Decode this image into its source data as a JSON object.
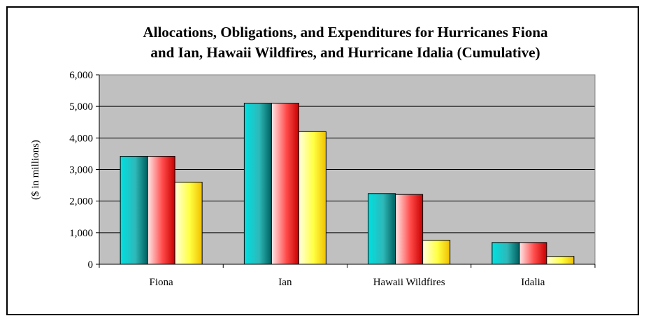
{
  "chart_data": {
    "type": "bar",
    "title_lines": [
      "Allocations, Obligations, and Expenditures for Hurricanes Fiona",
      "and Ian, Hawaii Wildfires, and Hurricane Idalia (Cumulative)"
    ],
    "ylabel": "($ in millions)",
    "xlabel": "",
    "ylim": [
      0,
      6000
    ],
    "yticks": [
      0,
      1000,
      2000,
      3000,
      4000,
      5000,
      6000
    ],
    "ytick_labels": [
      "0",
      "1,000",
      "2,000",
      "3,000",
      "4,000",
      "5,000",
      "6,000"
    ],
    "grid": true,
    "legend": "none",
    "categories": [
      "Fiona",
      "Ian",
      "Hawaii Wildfires",
      "Idalia"
    ],
    "series": [
      {
        "values": [
          3420,
          5100,
          2240,
          690
        ],
        "colors": [
          "#00e0e0",
          "#2fb8b8",
          "#006060"
        ]
      },
      {
        "values": [
          3420,
          5100,
          2210,
          690
        ],
        "colors": [
          "#ffe8e8",
          "#ff4a4a",
          "#c80000"
        ]
      },
      {
        "values": [
          2600,
          4200,
          760,
          250
        ],
        "colors": [
          "#ffffe0",
          "#ffff40",
          "#f0c000"
        ]
      }
    ],
    "plot_background": "#c0c0c0"
  }
}
